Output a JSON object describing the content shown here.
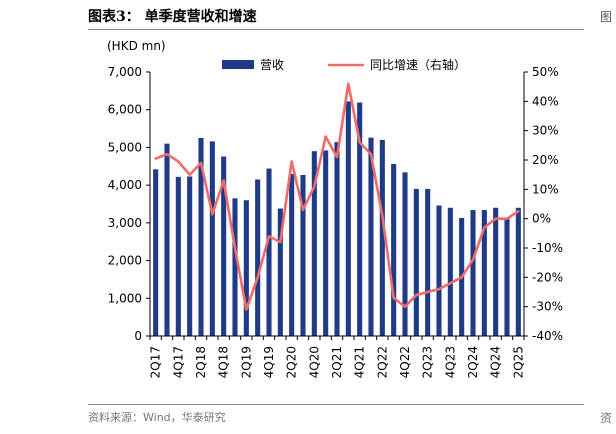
{
  "figure": {
    "title": "图表3：  单季度营收和增速",
    "source": "资料来源：Wind，华泰研究",
    "edge_glyph_top": "图",
    "edge_glyph_bottom": "资"
  },
  "chart_data": {
    "type": "bar",
    "left_unit_label": "(HKD mn)",
    "categories": [
      "2Q17",
      "3Q17",
      "4Q17",
      "1Q18",
      "2Q18",
      "3Q18",
      "4Q18",
      "1Q19",
      "2Q19",
      "3Q19",
      "4Q19",
      "1Q20",
      "2Q20",
      "3Q20",
      "4Q20",
      "1Q21",
      "2Q21",
      "3Q21",
      "4Q21",
      "1Q22",
      "2Q22",
      "3Q22",
      "4Q22",
      "1Q23",
      "2Q23",
      "3Q23",
      "4Q23",
      "1Q24",
      "2Q24",
      "3Q24",
      "4Q24",
      "1Q25",
      "2Q25"
    ],
    "x_tick_labels": [
      "2Q17",
      "4Q17",
      "2Q18",
      "4Q18",
      "2Q19",
      "4Q19",
      "2Q20",
      "4Q20",
      "2Q21",
      "4Q21",
      "2Q22",
      "4Q22",
      "2Q23",
      "4Q23",
      "2Q24",
      "4Q24",
      "2Q25"
    ],
    "series": [
      {
        "name": "营收",
        "type": "bar",
        "axis": "left",
        "color": "#1f3b87",
        "values": [
          4420,
          5100,
          4220,
          4230,
          5250,
          5160,
          4760,
          3650,
          3600,
          4150,
          4440,
          3380,
          4300,
          4270,
          4900,
          4920,
          5140,
          6220,
          6190,
          5260,
          5200,
          4560,
          4340,
          3900,
          3900,
          3460,
          3400,
          3130,
          3340,
          3340,
          3400,
          3100,
          3400
        ]
      },
      {
        "name": "同比增速（右轴）",
        "type": "line",
        "axis": "right",
        "color": "#f26b6b",
        "values": [
          20.5,
          22,
          19.5,
          15,
          19,
          1.5,
          13,
          -10,
          -31,
          -20,
          -6,
          -8,
          19.5,
          3,
          11,
          28,
          21,
          46,
          26,
          22,
          1,
          -27,
          -30,
          -26,
          -25,
          -24,
          -22,
          -20,
          -14,
          -3,
          0,
          0,
          2.5
        ]
      }
    ],
    "y_left": {
      "min": 0,
      "max": 7000,
      "ticks": [
        "0",
        "1,000",
        "2,000",
        "3,000",
        "4,000",
        "5,000",
        "6,000",
        "7,000"
      ]
    },
    "y_right": {
      "min": -40,
      "max": 50,
      "ticks": [
        "-40%",
        "-30%",
        "-20%",
        "-10%",
        "0%",
        "10%",
        "20%",
        "30%",
        "40%",
        "50%"
      ]
    },
    "grid": false,
    "legend_position": "top"
  }
}
